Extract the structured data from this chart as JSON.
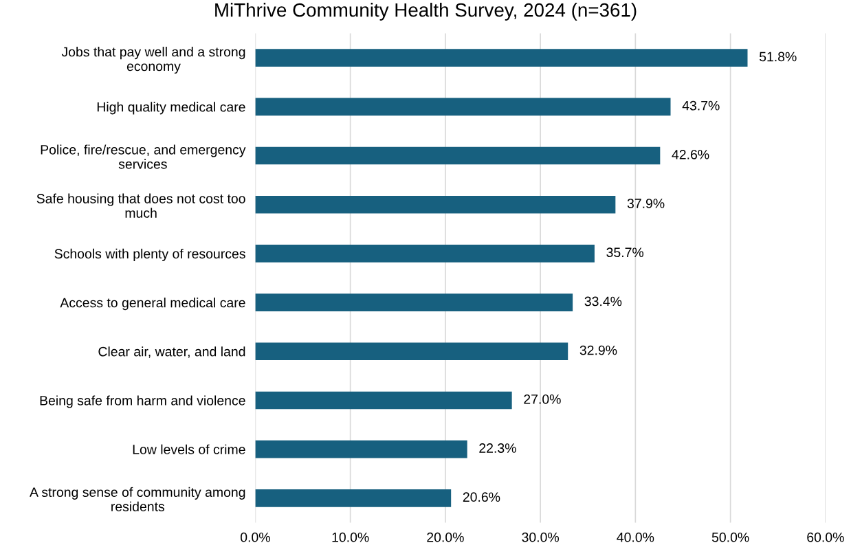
{
  "chart_data": {
    "type": "bar",
    "orientation": "horizontal",
    "title": "MiThrive Community Health Survey, 2024 (n=361)",
    "categories": [
      "Jobs that pay well and a strong economy",
      "High quality medical care",
      "Police, fire/rescue, and emergency services",
      "Safe housing that does not cost too much",
      "Schools with plenty of resources",
      "Access to general medical care",
      "Clear air, water, and land",
      "Being safe from harm and violence",
      "Low levels of crime",
      "A strong sense of community among residents"
    ],
    "values": [
      51.8,
      43.7,
      42.6,
      37.9,
      35.7,
      33.4,
      32.9,
      27.0,
      22.3,
      20.6
    ],
    "value_labels": [
      "51.8%",
      "43.7%",
      "42.6%",
      "37.9%",
      "35.7%",
      "33.4%",
      "32.9%",
      "27.0%",
      "22.3%",
      "20.6%"
    ],
    "color": "#17607f",
    "xlim": [
      0,
      60
    ],
    "xticks": [
      {
        "value": 0,
        "label": "0.0%"
      },
      {
        "value": 10,
        "label": "10.0%"
      },
      {
        "value": 20,
        "label": "20.0%"
      },
      {
        "value": 30,
        "label": "30.0%"
      },
      {
        "value": 40,
        "label": "40.0%"
      },
      {
        "value": 50,
        "label": "50.0%"
      },
      {
        "value": 60,
        "label": "60.0%"
      }
    ],
    "grid": "x",
    "legend": false
  }
}
